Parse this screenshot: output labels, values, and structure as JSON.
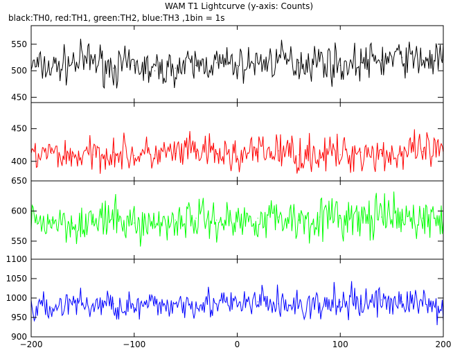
{
  "chart_data": {
    "type": "line",
    "title": "WAM T1 Lightcurve (y-axis: Counts)",
    "subtitle": "black:TH0, red:TH1, green:TH2, blue:TH3 ,1bin = 1s",
    "xlim": [
      -200,
      200
    ],
    "x_ticks": [
      -200,
      -100,
      0,
      100,
      200
    ],
    "grid": false,
    "x": [
      -200,
      -180,
      -160,
      -140,
      -120,
      -100,
      -80,
      -60,
      -40,
      -20,
      0,
      20,
      40,
      60,
      80,
      100,
      120,
      140,
      160,
      180,
      200
    ],
    "panels": [
      {
        "series": [
          {
            "color": "#000000",
            "values": [
              510,
              505,
              515,
              520,
              505,
              510,
              500,
              505,
              510,
              515,
              510,
              515,
              520,
              515,
              520,
              510,
              515,
              520,
              525,
              520,
              520
            ],
            "low": [
              470,
              460,
              455,
              460,
              455,
              465,
              450,
              470,
              460,
              470,
              465,
              470,
              470,
              465,
              470,
              460,
              470,
              470,
              480,
              475,
              470
            ],
            "high": [
              560,
              555,
              560,
              565,
              555,
              560,
              555,
              560,
              565,
              560,
              560,
              565,
              570,
              575,
              570,
              565,
              570,
              575,
              580,
              570,
              575
            ]
          }
        ],
        "ylim": [
          440,
          585
        ],
        "y_ticks": [
          450,
          500,
          550
        ]
      },
      {
        "series": [
          {
            "color": "#ff0000",
            "values": [
              410,
              412,
              408,
              410,
              414,
              409,
              410,
              412,
              415,
              410,
              408,
              414,
              416,
              410,
              412,
              410,
              414,
              412,
              410,
              415,
              412
            ],
            "low": [
              375,
              378,
              374,
              378,
              380,
              375,
              372,
              378,
              380,
              376,
              375,
              378,
              376,
              374,
              378,
              375,
              376,
              378,
              376,
              380,
              374
            ],
            "high": [
              450,
              452,
              450,
              455,
              455,
              450,
              455,
              455,
              460,
              455,
              455,
              458,
              465,
              460,
              460,
              458,
              465,
              460,
              462,
              465,
              460
            ]
          }
        ],
        "ylim": [
          370,
          490
        ],
        "y_ticks": [
          400,
          450
        ]
      },
      {
        "series": [
          {
            "color": "#00ff00",
            "values": [
              580,
              585,
              580,
              582,
              585,
              580,
              578,
              585,
              588,
              585,
              582,
              588,
              590,
              585,
              590,
              588,
              585,
              590,
              585,
              588,
              585
            ],
            "low": [
              535,
              540,
              538,
              535,
              540,
              530,
              530,
              538,
              540,
              538,
              535,
              540,
              545,
              535,
              540,
              538,
              530,
              540,
              535,
              540,
              538
            ],
            "high": [
              630,
              635,
              632,
              638,
              635,
              630,
              628,
              635,
              640,
              635,
              632,
              640,
              645,
              640,
              648,
              642,
              640,
              645,
              640,
              645,
              642
            ]
          }
        ],
        "ylim": [
          520,
          650
        ],
        "y_ticks": [
          550,
          600,
          650
        ]
      },
      {
        "series": [
          {
            "color": "#0000ff",
            "values": [
              970,
              975,
              990,
              980,
              985,
              975,
              980,
              985,
              990,
              985,
              980,
              990,
              985,
              980,
              975,
              990,
              985,
              995,
              990,
              985,
              980
            ],
            "low": [
              925,
              930,
              935,
              930,
              935,
              920,
              930,
              935,
              940,
              930,
              925,
              935,
              930,
              925,
              920,
              935,
              930,
              940,
              935,
              930,
              925
            ],
            "high": [
              1020,
              1035,
              1070,
              1040,
              1045,
              1035,
              1040,
              1050,
              1060,
              1050,
              1045,
              1060,
              1055,
              1050,
              1040,
              1060,
              1055,
              1070,
              1060,
              1050,
              1045
            ]
          }
        ],
        "ylim": [
          900,
          1100
        ],
        "y_ticks": [
          900,
          950,
          1000,
          1050,
          1100
        ]
      }
    ]
  }
}
